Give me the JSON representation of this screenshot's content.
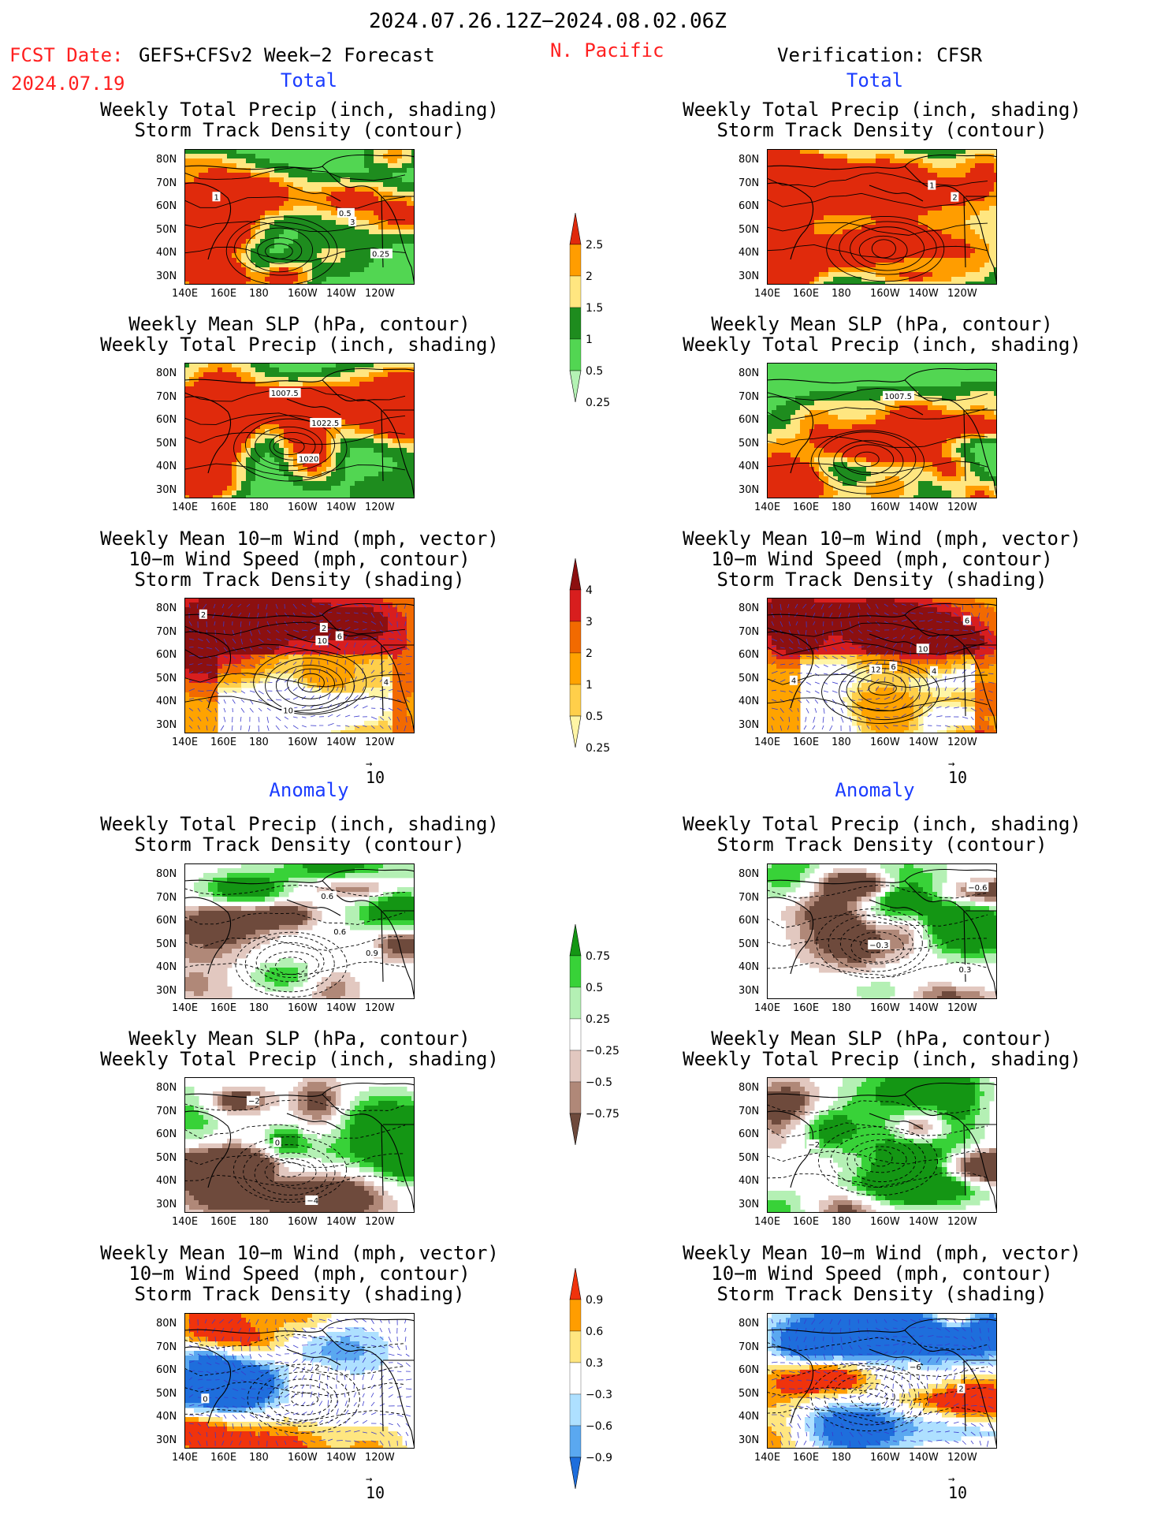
{
  "header": {
    "date_range": "2024.07.26.12Z−2024.08.02.06Z",
    "fcst_label": "FCST Date:",
    "fcst_model": "GEFS+CFSv2 Week−2 Forecast",
    "fcst_date": "2024.07.19",
    "region": "N. Pacific",
    "verification": "Verification: CFSR"
  },
  "sections": {
    "total": "Total",
    "anomaly": "Anomaly"
  },
  "panel_titles": {
    "precip_storm": [
      "Weekly Total Precip (inch, shading)",
      "Storm Track Density (contour)"
    ],
    "slp_precip": [
      "Weekly Mean SLP (hPa, contour)",
      "Weekly Total Precip (inch, shading)"
    ],
    "wind_storm": [
      "Weekly Mean 10−m Wind (mph, vector)",
      "10−m Wind Speed (mph, contour)",
      "Storm Track Density (shading)"
    ]
  },
  "vector_reference": "10",
  "colors": {
    "title_red": "#ff2020",
    "section_blue": "#1b3cff",
    "land_map": "#000000"
  },
  "chart_data": [
    {
      "type": "heatmap",
      "id": "fcst-total-precip-storm",
      "column": "forecast",
      "row": "total",
      "field": "precip_storm",
      "xlabels": [
        "140E",
        "160E",
        "180",
        "160W",
        "140W",
        "120W"
      ],
      "ylabels": [
        "80N",
        "70N",
        "60N",
        "50N",
        "40N",
        "30N"
      ],
      "contour_labels": [
        "3",
        "1",
        "0.5",
        "0.25"
      ]
    },
    {
      "type": "heatmap",
      "id": "verif-total-precip-storm",
      "column": "verification",
      "row": "total",
      "field": "precip_storm",
      "xlabels": [
        "140E",
        "160E",
        "180",
        "160W",
        "140W",
        "120W"
      ],
      "ylabels": [
        "80N",
        "70N",
        "60N",
        "50N",
        "40N",
        "30N"
      ],
      "contour_labels": [
        "2",
        "1"
      ]
    },
    {
      "type": "heatmap",
      "id": "fcst-total-slp-precip",
      "column": "forecast",
      "row": "total",
      "field": "slp_precip",
      "xlabels": [
        "140E",
        "160E",
        "180",
        "160W",
        "140W",
        "120W"
      ],
      "ylabels": [
        "80N",
        "70N",
        "60N",
        "50N",
        "40N",
        "30N"
      ],
      "contour_labels": [
        "1007.5",
        "1022.5",
        "1020"
      ]
    },
    {
      "type": "heatmap",
      "id": "verif-total-slp-precip",
      "column": "verification",
      "row": "total",
      "field": "slp_precip",
      "xlabels": [
        "140E",
        "160E",
        "180",
        "160W",
        "140W",
        "120W"
      ],
      "ylabels": [
        "80N",
        "70N",
        "60N",
        "50N",
        "40N",
        "30N"
      ],
      "contour_labels": [
        "1007.5"
      ]
    },
    {
      "type": "heatmap",
      "id": "fcst-total-wind-storm",
      "column": "forecast",
      "row": "total",
      "field": "wind_storm",
      "xlabels": [
        "140E",
        "160E",
        "180",
        "160W",
        "140W",
        "120W"
      ],
      "ylabels": [
        "80N",
        "70N",
        "60N",
        "50N",
        "40N",
        "30N"
      ],
      "contour_labels": [
        "4",
        "2",
        "2",
        "6",
        "10",
        "10"
      ]
    },
    {
      "type": "heatmap",
      "id": "verif-total-wind-storm",
      "column": "verification",
      "row": "total",
      "field": "wind_storm",
      "xlabels": [
        "140E",
        "160E",
        "180",
        "160W",
        "140W",
        "120W"
      ],
      "ylabels": [
        "80N",
        "70N",
        "60N",
        "50N",
        "40N",
        "30N"
      ],
      "contour_labels": [
        "6",
        "4",
        "6",
        "12",
        "10",
        "4"
      ]
    },
    {
      "type": "heatmap",
      "id": "fcst-anom-precip-storm",
      "column": "forecast",
      "row": "anomaly",
      "field": "precip_storm",
      "xlabels": [
        "140E",
        "160E",
        "180",
        "160W",
        "140W",
        "120W"
      ],
      "ylabels": [
        "80N",
        "70N",
        "60N",
        "50N",
        "40N",
        "30N"
      ],
      "contour_labels": [
        "0.6",
        "0.9",
        "0.6"
      ]
    },
    {
      "type": "heatmap",
      "id": "verif-anom-precip-storm",
      "column": "verification",
      "row": "anomaly",
      "field": "precip_storm",
      "xlabels": [
        "140E",
        "160E",
        "180",
        "160W",
        "140W",
        "120W"
      ],
      "ylabels": [
        "80N",
        "70N",
        "60N",
        "50N",
        "40N",
        "30N"
      ],
      "contour_labels": [
        "0.3",
        "−0.6",
        "−0.3"
      ]
    },
    {
      "type": "heatmap",
      "id": "fcst-anom-slp-precip",
      "column": "forecast",
      "row": "anomaly",
      "field": "slp_precip",
      "xlabels": [
        "140E",
        "160E",
        "180",
        "160W",
        "140W",
        "120W"
      ],
      "ylabels": [
        "80N",
        "70N",
        "60N",
        "50N",
        "40N",
        "30N"
      ],
      "contour_labels": [
        "−4",
        "−2",
        "0"
      ]
    },
    {
      "type": "heatmap",
      "id": "verif-anom-slp-precip",
      "column": "verification",
      "row": "anomaly",
      "field": "slp_precip",
      "xlabels": [
        "140E",
        "160E",
        "180",
        "160W",
        "140W",
        "120W"
      ],
      "ylabels": [
        "80N",
        "70N",
        "60N",
        "50N",
        "40N",
        "30N"
      ],
      "contour_labels": [
        "−2"
      ]
    },
    {
      "type": "heatmap",
      "id": "fcst-anom-wind-storm",
      "column": "forecast",
      "row": "anomaly",
      "field": "wind_storm",
      "xlabels": [
        "140E",
        "160E",
        "180",
        "160W",
        "140W",
        "120W"
      ],
      "ylabels": [
        "80N",
        "70N",
        "60N",
        "50N",
        "40N",
        "30N"
      ],
      "contour_labels": [
        "0",
        "2"
      ]
    },
    {
      "type": "heatmap",
      "id": "verif-anom-wind-storm",
      "column": "verification",
      "row": "anomaly",
      "field": "wind_storm",
      "xlabels": [
        "140E",
        "160E",
        "180",
        "160W",
        "140W",
        "120W"
      ],
      "ylabels": [
        "80N",
        "70N",
        "60N",
        "50N",
        "40N",
        "30N"
      ],
      "contour_labels": [
        "2",
        "−6"
      ]
    }
  ],
  "colorbars": {
    "total_precip": {
      "ticks": [
        "2.5",
        "2",
        "1.5",
        "1",
        "0.5",
        "0.25"
      ],
      "colors": [
        "#e02a0c",
        "#ff9d00",
        "#ffe680",
        "#1e8c1e",
        "#52d652",
        "#b4f2b4"
      ]
    },
    "total_storm": {
      "ticks": [
        "4",
        "3",
        "2",
        "1",
        "0.5",
        "0.25"
      ],
      "colors": [
        "#8c1010",
        "#d81e1e",
        "#f26a00",
        "#ffa300",
        "#ffcf4a",
        "#fff5a6"
      ]
    },
    "anom_precip": {
      "ticks": [
        "0.75",
        "0.5",
        "0.25",
        "−0.25",
        "−0.5",
        "−0.75"
      ],
      "colors": [
        "#149614",
        "#38d238",
        "#b4f0b4",
        "#ffffff",
        "#e2c8c0",
        "#b08878",
        "#6e4a3c"
      ]
    },
    "anom_storm": {
      "ticks": [
        "0.9",
        "0.6",
        "0.3",
        "−0.3",
        "−0.6",
        "−0.9"
      ],
      "colors": [
        "#f0330c",
        "#ff9d00",
        "#ffe680",
        "#ffffff",
        "#aee0ff",
        "#5aa8f0",
        "#1e6edc"
      ]
    }
  }
}
